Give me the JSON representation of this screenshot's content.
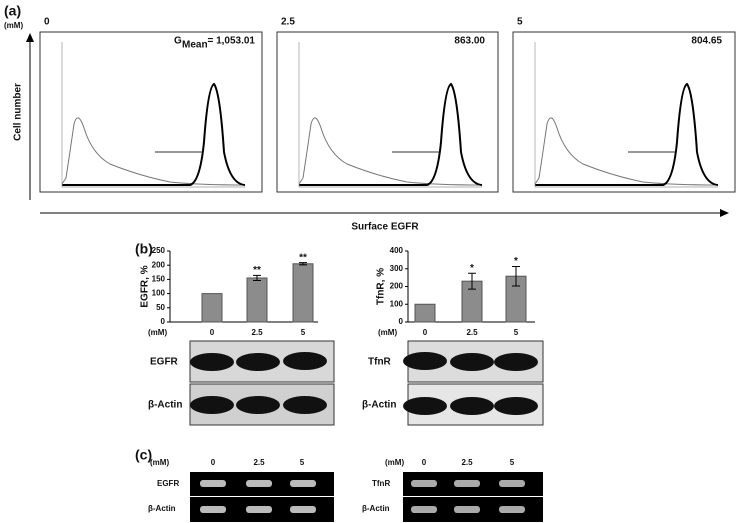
{
  "figure": {
    "panel_a": {
      "label": "(a)",
      "unit": "(mM)",
      "y_axis": "Cell number",
      "x_axis": "Surface EGFR",
      "panels": [
        {
          "dose": "0",
          "g": "G",
          "sub": "Mean",
          "value": "= 1,053.01"
        },
        {
          "dose": "2.5",
          "value": "863.00"
        },
        {
          "dose": "5",
          "value": "804.65"
        }
      ]
    },
    "panel_b": {
      "label": "(b)",
      "blots": [
        {
          "unit": "(mM)",
          "top": "EGFR",
          "bottom": "β-Actin"
        },
        {
          "unit": "(mM)",
          "top": "TfnR",
          "bottom": "β-Actin"
        }
      ]
    },
    "panel_c": {
      "label": "(c)",
      "gels": [
        {
          "unit": "(mM)",
          "categories": [
            "0",
            "2.5",
            "5"
          ],
          "top": "EGFR",
          "bottom": "β-Actin"
        },
        {
          "unit": "(mM)",
          "categories": [
            "0",
            "2.5",
            "5"
          ],
          "top": "TfnR",
          "bottom": "β-Actin"
        }
      ]
    }
  },
  "chart_data": [
    {
      "type": "bar",
      "y_label": "EGFR, %",
      "categories": [
        "0",
        "2.5",
        "5"
      ],
      "values": [
        100,
        155,
        205
      ],
      "errors": [
        null,
        9,
        4
      ],
      "annotations": [
        null,
        "**",
        "**"
      ],
      "color": "#8c8c8c",
      "ylim": [
        0,
        250
      ],
      "yticks": [
        0,
        50,
        100,
        150,
        200,
        250
      ]
    },
    {
      "type": "bar",
      "y_label": "TfnR, %",
      "categories": [
        "0",
        "2.5",
        "5"
      ],
      "values": [
        100,
        230,
        258
      ],
      "errors": [
        null,
        45,
        55
      ],
      "annotations": [
        null,
        "*",
        "*"
      ],
      "color": "#8c8c8c",
      "ylim": [
        0,
        400
      ],
      "yticks": [
        0,
        100,
        200,
        300,
        400
      ]
    }
  ]
}
